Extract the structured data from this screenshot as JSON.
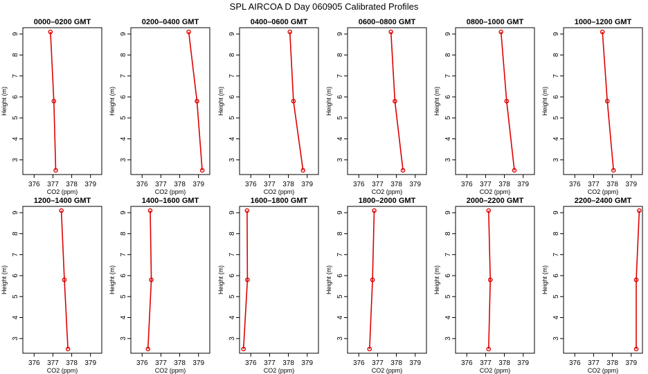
{
  "title": "SPL AIRCOA D  Day 060905  Calibrated Profiles",
  "colors": {
    "series": "#dd0000",
    "axis": "#000000"
  },
  "chart_data": [
    {
      "type": "line",
      "title": "0000–0200 GMT",
      "xlabel": "CO2 (ppm)",
      "ylabel": "Height (m)",
      "xlim": [
        375.4,
        379.6
      ],
      "ylim": [
        2.3,
        9.3
      ],
      "xticks": [
        376,
        377,
        378,
        379
      ],
      "yticks": [
        3,
        4,
        5,
        6,
        7,
        8,
        9
      ],
      "x": [
        376.87,
        377.05,
        377.15
      ],
      "y": [
        9.1,
        5.8,
        2.5
      ]
    },
    {
      "type": "line",
      "title": "0200–0400 GMT",
      "xlabel": "CO2 (ppm)",
      "ylabel": "Height (m)",
      "xlim": [
        375.4,
        379.6
      ],
      "ylim": [
        2.3,
        9.3
      ],
      "xticks": [
        376,
        377,
        378,
        379
      ],
      "yticks": [
        3,
        4,
        5,
        6,
        7,
        8,
        9
      ],
      "x": [
        378.48,
        378.92,
        379.2
      ],
      "y": [
        9.1,
        5.8,
        2.5
      ]
    },
    {
      "type": "line",
      "title": "0400–0600 GMT",
      "xlabel": "CO2 (ppm)",
      "ylabel": "Height (m)",
      "xlim": [
        375.4,
        379.6
      ],
      "ylim": [
        2.3,
        9.3
      ],
      "xticks": [
        376,
        377,
        378,
        379
      ],
      "yticks": [
        3,
        4,
        5,
        6,
        7,
        8,
        9
      ],
      "x": [
        378.08,
        378.27,
        378.78
      ],
      "y": [
        9.1,
        5.8,
        2.5
      ]
    },
    {
      "type": "line",
      "title": "0600–0800 GMT",
      "xlabel": "CO2 (ppm)",
      "ylabel": "Height (m)",
      "xlim": [
        375.4,
        379.6
      ],
      "ylim": [
        2.3,
        9.3
      ],
      "xticks": [
        376,
        377,
        378,
        379
      ],
      "yticks": [
        3,
        4,
        5,
        6,
        7,
        8,
        9
      ],
      "x": [
        377.71,
        377.92,
        378.35
      ],
      "y": [
        9.1,
        5.8,
        2.5
      ]
    },
    {
      "type": "line",
      "title": "0800–1000 GMT",
      "xlabel": "CO2 (ppm)",
      "ylabel": "Height (m)",
      "xlim": [
        375.4,
        379.6
      ],
      "ylim": [
        2.3,
        9.3
      ],
      "xticks": [
        376,
        377,
        378,
        379
      ],
      "yticks": [
        3,
        4,
        5,
        6,
        7,
        8,
        9
      ],
      "x": [
        377.82,
        378.12,
        378.53
      ],
      "y": [
        9.1,
        5.8,
        2.5
      ]
    },
    {
      "type": "line",
      "title": "1000–1200 GMT",
      "xlabel": "CO2 (ppm)",
      "ylabel": "Height (m)",
      "xlim": [
        375.4,
        379.6
      ],
      "ylim": [
        2.3,
        9.3
      ],
      "xticks": [
        376,
        377,
        378,
        379
      ],
      "yticks": [
        3,
        4,
        5,
        6,
        7,
        8,
        9
      ],
      "x": [
        377.47,
        377.73,
        378.06
      ],
      "y": [
        9.1,
        5.8,
        2.5
      ]
    },
    {
      "type": "line",
      "title": "1200–1400 GMT",
      "xlabel": "CO2 (ppm)",
      "ylabel": "Height (m)",
      "xlim": [
        375.4,
        379.6
      ],
      "ylim": [
        2.3,
        9.3
      ],
      "xticks": [
        376,
        377,
        378,
        379
      ],
      "yticks": [
        3,
        4,
        5,
        6,
        7,
        8,
        9
      ],
      "x": [
        377.45,
        377.61,
        377.8
      ],
      "y": [
        9.1,
        5.8,
        2.5
      ]
    },
    {
      "type": "line",
      "title": "1400–1600 GMT",
      "xlabel": "CO2 (ppm)",
      "ylabel": "Height (m)",
      "xlim": [
        375.4,
        379.6
      ],
      "ylim": [
        2.3,
        9.3
      ],
      "xticks": [
        376,
        377,
        378,
        379
      ],
      "yticks": [
        3,
        4,
        5,
        6,
        7,
        8,
        9
      ],
      "x": [
        376.43,
        376.49,
        376.31
      ],
      "y": [
        9.1,
        5.8,
        2.5
      ]
    },
    {
      "type": "line",
      "title": "1600–1800 GMT",
      "xlabel": "CO2 (ppm)",
      "ylabel": "Height (m)",
      "xlim": [
        375.4,
        379.6
      ],
      "ylim": [
        2.3,
        9.3
      ],
      "xticks": [
        376,
        377,
        378,
        379
      ],
      "yticks": [
        3,
        4,
        5,
        6,
        7,
        8,
        9
      ],
      "x": [
        375.8,
        375.82,
        375.61
      ],
      "y": [
        9.1,
        5.8,
        2.5
      ]
    },
    {
      "type": "line",
      "title": "1800–2000 GMT",
      "xlabel": "CO2 (ppm)",
      "ylabel": "Height (m)",
      "xlim": [
        375.4,
        379.6
      ],
      "ylim": [
        2.3,
        9.3
      ],
      "xticks": [
        376,
        377,
        378,
        379
      ],
      "yticks": [
        3,
        4,
        5,
        6,
        7,
        8,
        9
      ],
      "x": [
        376.82,
        376.73,
        376.57
      ],
      "y": [
        9.1,
        5.8,
        2.5
      ]
    },
    {
      "type": "line",
      "title": "2000–2200 GMT",
      "xlabel": "CO2 (ppm)",
      "ylabel": "Height (m)",
      "xlim": [
        375.4,
        379.6
      ],
      "ylim": [
        2.3,
        9.3
      ],
      "xticks": [
        376,
        377,
        378,
        379
      ],
      "yticks": [
        3,
        4,
        5,
        6,
        7,
        8,
        9
      ],
      "x": [
        377.16,
        377.25,
        377.16
      ],
      "y": [
        9.1,
        5.8,
        2.5
      ]
    },
    {
      "type": "line",
      "title": "2200–2400 GMT",
      "xlabel": "CO2 (ppm)",
      "ylabel": "Height (m)",
      "xlim": [
        375.4,
        379.6
      ],
      "ylim": [
        2.3,
        9.3
      ],
      "xticks": [
        376,
        377,
        378,
        379
      ],
      "yticks": [
        3,
        4,
        5,
        6,
        7,
        8,
        9
      ],
      "x": [
        379.43,
        379.27,
        379.27
      ],
      "y": [
        9.1,
        5.8,
        2.5
      ]
    }
  ]
}
